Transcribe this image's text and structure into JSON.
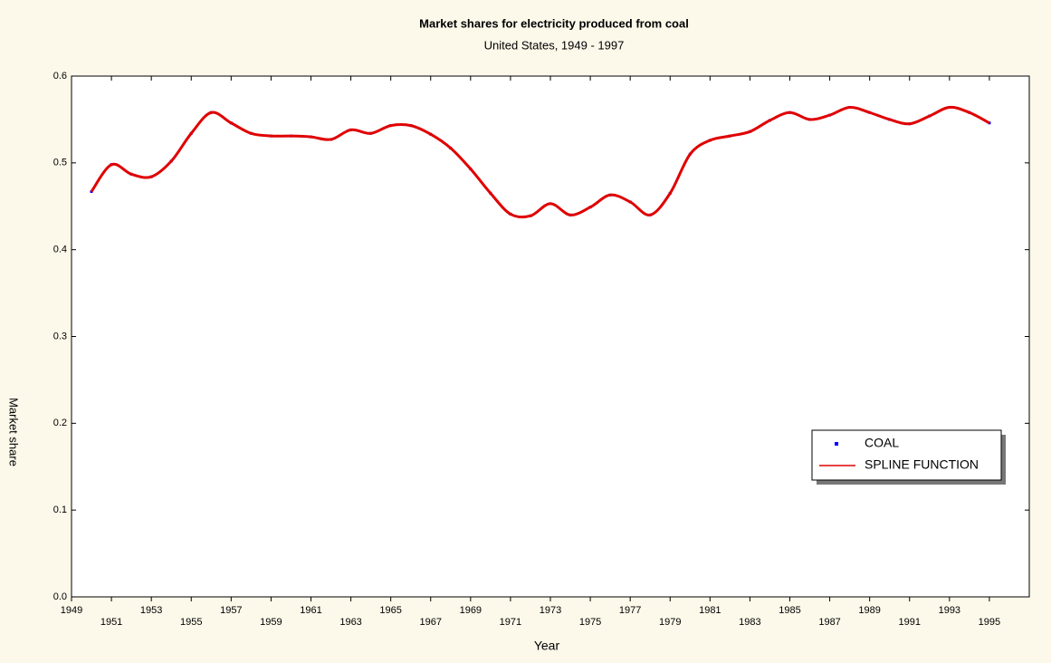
{
  "chart_data": {
    "type": "line",
    "title": "Market shares for electricity produced from coal",
    "subtitle": "United States, 1949 - 1997",
    "x_label": "Year",
    "y_label": "Market share",
    "x": [
      1950,
      1951,
      1952,
      1953,
      1954,
      1955,
      1956,
      1957,
      1958,
      1959,
      1960,
      1961,
      1962,
      1963,
      1964,
      1965,
      1966,
      1967,
      1968,
      1969,
      1970,
      1971,
      1972,
      1973,
      1974,
      1975,
      1976,
      1977,
      1978,
      1979,
      1980,
      1981,
      1982,
      1983,
      1984,
      1985,
      1986,
      1987,
      1988,
      1989,
      1990,
      1991,
      1992,
      1993,
      1994,
      1995
    ],
    "series": [
      {
        "name": "COAL",
        "color": "#0000ff",
        "marker": "square",
        "values": [
          0.467,
          0.498,
          0.487,
          0.484,
          0.502,
          0.534,
          0.558,
          0.546,
          0.534,
          0.531,
          0.531,
          0.53,
          0.527,
          0.538,
          0.534,
          0.543,
          0.543,
          0.533,
          0.517,
          0.493,
          0.465,
          0.441,
          0.439,
          0.453,
          0.44,
          0.449,
          0.463,
          0.455,
          0.44,
          0.465,
          0.51,
          0.526,
          0.531,
          0.536,
          0.549,
          0.558,
          0.55,
          0.555,
          0.564,
          0.558,
          0.55,
          0.545,
          0.554,
          0.564,
          0.558,
          0.546
        ]
      },
      {
        "name": "SPLINE FUNCTION",
        "color": "#e00000",
        "marker": "line",
        "values": [
          0.467,
          0.498,
          0.487,
          0.484,
          0.502,
          0.534,
          0.558,
          0.546,
          0.534,
          0.531,
          0.531,
          0.53,
          0.527,
          0.538,
          0.534,
          0.543,
          0.543,
          0.533,
          0.517,
          0.493,
          0.465,
          0.441,
          0.439,
          0.453,
          0.44,
          0.449,
          0.463,
          0.455,
          0.44,
          0.465,
          0.51,
          0.526,
          0.531,
          0.536,
          0.549,
          0.558,
          0.55,
          0.555,
          0.564,
          0.558,
          0.55,
          0.545,
          0.554,
          0.564,
          0.558,
          0.546
        ]
      }
    ],
    "xlim": [
      1949,
      1997
    ],
    "xticks": [
      1949,
      1951,
      1953,
      1955,
      1957,
      1959,
      1961,
      1963,
      1965,
      1967,
      1969,
      1971,
      1973,
      1975,
      1977,
      1979,
      1981,
      1983,
      1985,
      1987,
      1989,
      1991,
      1993,
      1995
    ],
    "ylim": [
      0,
      0.6
    ],
    "yticks": [
      {
        "value": 0,
        "label": "0.0"
      },
      0.1,
      0.2,
      0.3,
      0.4,
      0.5,
      0.6
    ],
    "legend": "lower right",
    "grid": false
  }
}
